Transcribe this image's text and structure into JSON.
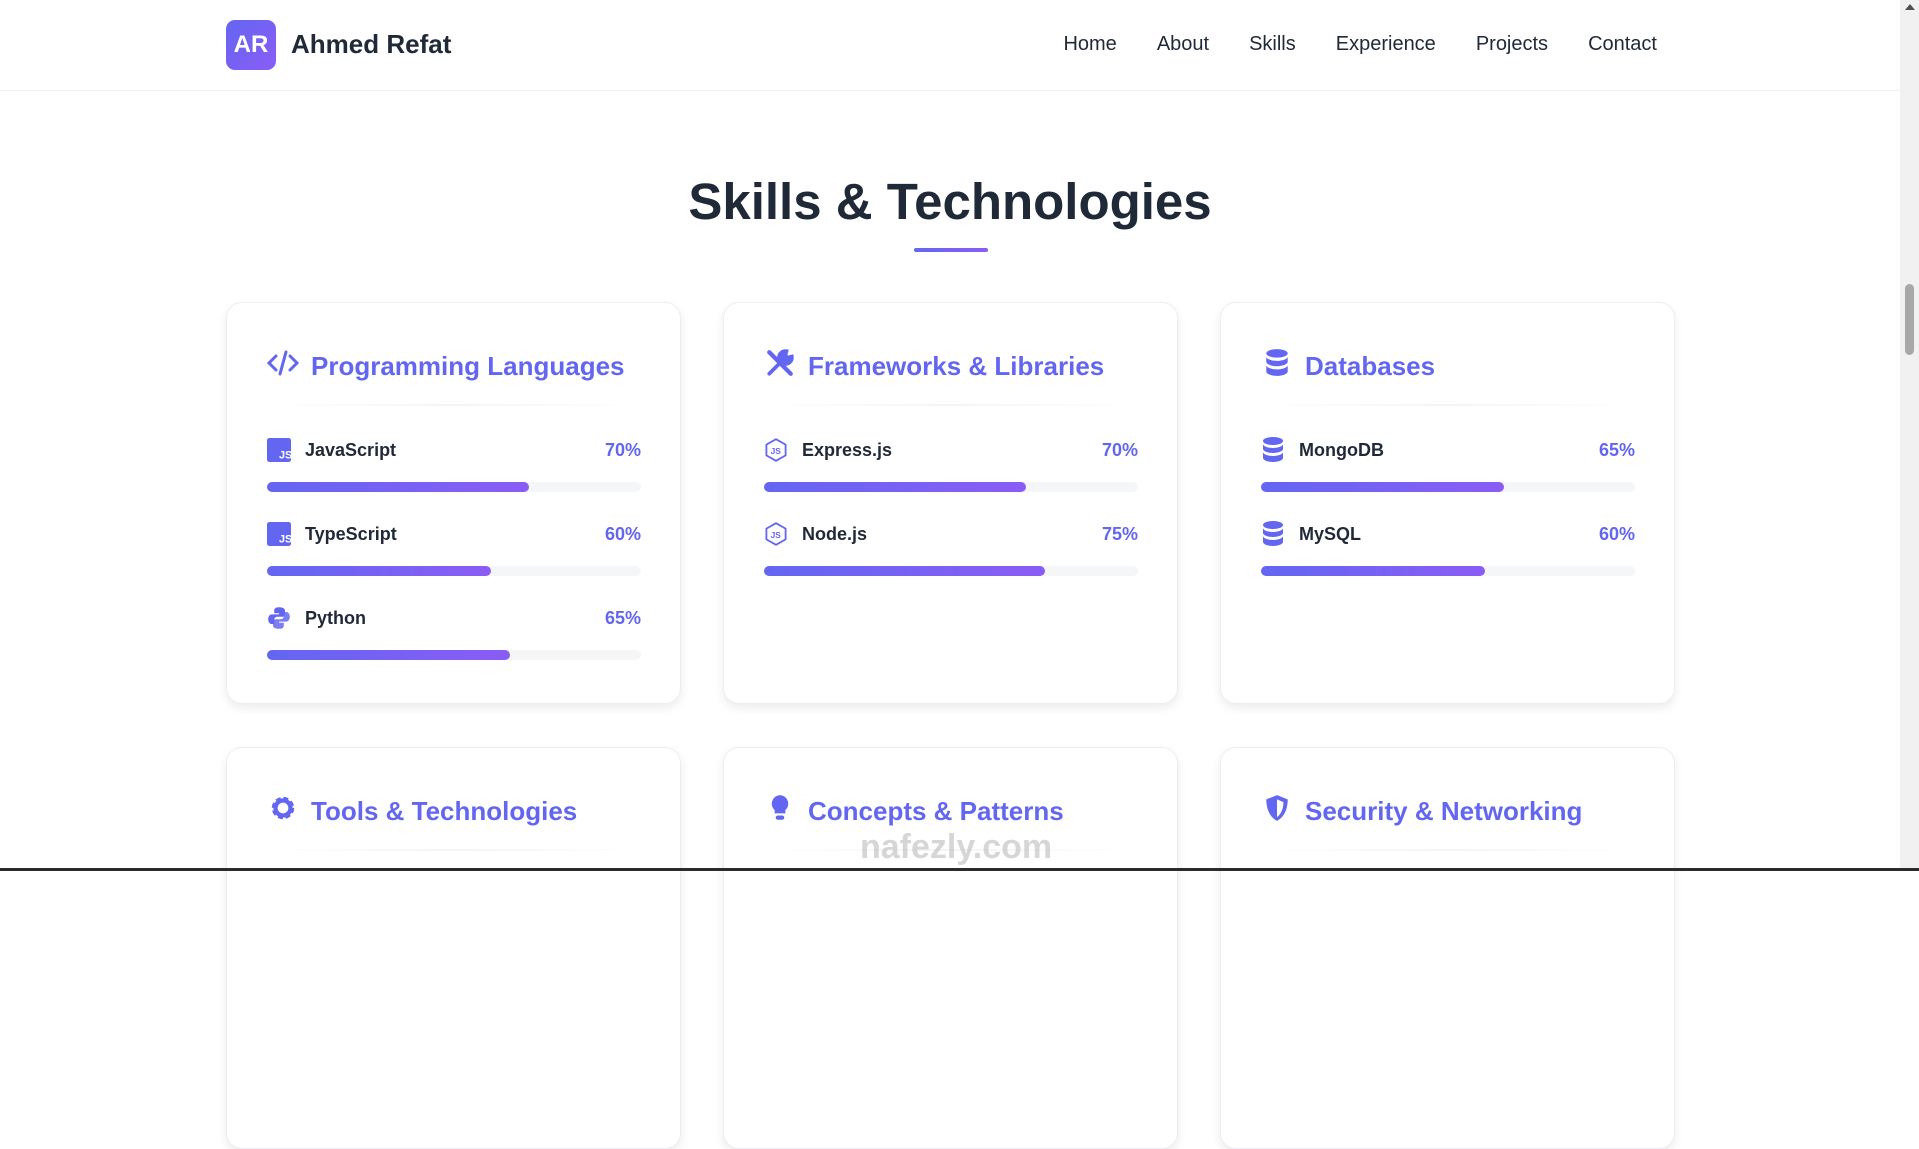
{
  "nav": {
    "logo": "AR",
    "brand": "Ahmed Refat",
    "links": [
      "Home",
      "About",
      "Skills",
      "Experience",
      "Projects",
      "Contact"
    ]
  },
  "section": {
    "title": "Skills & Technologies"
  },
  "accent": "#6366f1",
  "cards": [
    {
      "title": "Programming Languages",
      "icon": "code-icon",
      "skills": [
        {
          "name": "JavaScript",
          "icon": "js-icon",
          "percent": "70%",
          "value": 70
        },
        {
          "name": "TypeScript",
          "icon": "js-icon",
          "percent": "60%",
          "value": 60
        },
        {
          "name": "Python",
          "icon": "python-icon",
          "percent": "65%",
          "value": 65
        }
      ]
    },
    {
      "title": "Frameworks & Libraries",
      "icon": "tools-icon",
      "skills": [
        {
          "name": "Express.js",
          "icon": "nodejs-icon",
          "percent": "70%",
          "value": 70
        },
        {
          "name": "Node.js",
          "icon": "nodejs-icon",
          "percent": "75%",
          "value": 75
        }
      ]
    },
    {
      "title": "Databases",
      "icon": "database-icon",
      "skills": [
        {
          "name": "MongoDB",
          "icon": "database-icon",
          "percent": "65%",
          "value": 65
        },
        {
          "name": "MySQL",
          "icon": "database-icon",
          "percent": "60%",
          "value": 60
        }
      ]
    },
    {
      "title": "Tools & Technologies",
      "icon": "gear-icon",
      "skills": []
    },
    {
      "title": "Concepts & Patterns",
      "icon": "lightbulb-icon",
      "skills": []
    },
    {
      "title": "Security & Networking",
      "icon": "shield-icon",
      "skills": []
    }
  ],
  "watermark": "nafezly.com"
}
